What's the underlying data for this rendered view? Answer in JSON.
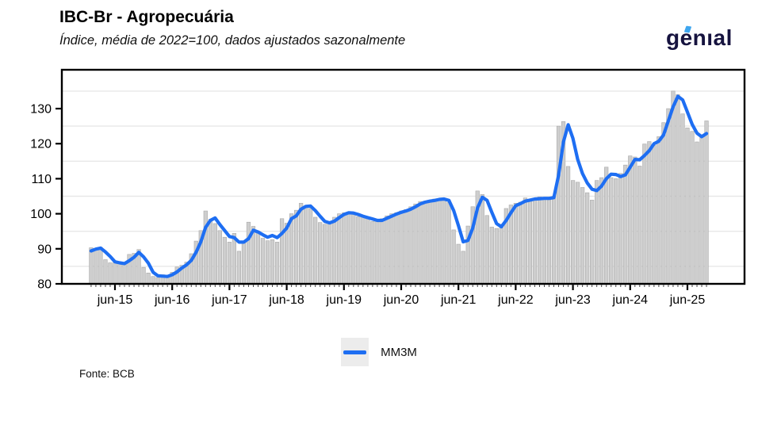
{
  "header": {
    "title": "IBC-Br - Agropecuária",
    "subtitle": "Índice, média de 2022=100, dados ajustados sazonalmente",
    "logo_text": "genıal"
  },
  "legend": {
    "label": "MM3M"
  },
  "footer": {
    "source": "Fonte: BCB"
  },
  "colors": {
    "line": "#1e6ef2",
    "bar_fill": "#cecece",
    "bar_stroke": "#a9a9a9",
    "grid": "#e8e8e8",
    "axis": "#000000",
    "legend_key_bg": "#ececec",
    "logo_navy": "#16133f",
    "logo_accent": "#3ea6ef"
  },
  "chart_data": {
    "type": "bar",
    "title": "IBC-Br - Agropecuária",
    "subtitle": "Índice, média de 2022=100, dados ajustados sazonalmente",
    "frequency": "monthly",
    "start_month": "jan-2015",
    "end_month": "out-2025",
    "x_tick_labels": [
      "jun-15",
      "jun-16",
      "jun-17",
      "jun-18",
      "jun-19",
      "jun-20",
      "jun-21",
      "jun-22",
      "jun-23",
      "jun-24",
      "jun-25"
    ],
    "y_ticks": [
      80,
      90,
      100,
      110,
      120,
      130
    ],
    "ylim": [
      79,
      141
    ],
    "grid_values": [
      85,
      95,
      105,
      115,
      125,
      135
    ],
    "legend_position": "bottom-center",
    "series": [
      {
        "name": "Índice",
        "type": "bar",
        "values": [
          90.3,
          90.0,
          90.4,
          86.9,
          86.0,
          86.1,
          85.8,
          85.6,
          88.4,
          88.7,
          89.8,
          84.7,
          83.1,
          82.1,
          81.8,
          82.6,
          82.0,
          83.3,
          84.8,
          85.3,
          86.2,
          88.6,
          92.2,
          95.2,
          100.8,
          98.4,
          97.2,
          95.2,
          93.3,
          91.9,
          94.4,
          89.3,
          91.9,
          97.6,
          96.4,
          94.7,
          93.0,
          92.3,
          92.6,
          91.9,
          98.6,
          97.3,
          100.0,
          101.0,
          103.0,
          102.2,
          101.5,
          99.0,
          97.5,
          97.0,
          97.8,
          99.0,
          100.0,
          100.3,
          100.5,
          99.8,
          99.2,
          99.0,
          98.6,
          97.8,
          98.0,
          98.6,
          99.4,
          100.0,
          100.3,
          100.8,
          101.2,
          102.0,
          102.8,
          103.5,
          103.6,
          103.7,
          104.2,
          104.3,
          104.0,
          103.2,
          95.4,
          91.3,
          89.3,
          96.5,
          102.0,
          106.5,
          105.5,
          99.5,
          96.2,
          95.8,
          97.0,
          101.5,
          102.5,
          103.0,
          103.3,
          104.5,
          103.8,
          104.2,
          104.8,
          104.3,
          104.0,
          105.0,
          125.0,
          126.3,
          113.5,
          109.5,
          109.0,
          107.5,
          106.0,
          103.9,
          109.5,
          110.3,
          113.3,
          110.3,
          110.0,
          111.5,
          113.9,
          116.5,
          116.2,
          113.6,
          119.9,
          120.6,
          119.5,
          122.0,
          126.0,
          130.0,
          135.0,
          134.0,
          128.5,
          124.5,
          123.5,
          120.5,
          122.0,
          126.5
        ]
      },
      {
        "name": "MM3M",
        "type": "line",
        "values": [
          89.4,
          89.9,
          90.2,
          89.1,
          87.8,
          86.3,
          86.0,
          85.8,
          86.6,
          87.6,
          89.0,
          87.7,
          85.9,
          83.3,
          82.3,
          82.2,
          82.1,
          82.6,
          83.4,
          84.5,
          85.4,
          86.7,
          89.0,
          92.0,
          96.1,
          98.1,
          98.8,
          96.9,
          95.2,
          93.5,
          93.2,
          91.9,
          91.9,
          92.9,
          95.3,
          94.8,
          94.0,
          93.3,
          93.8,
          93.2,
          94.4,
          95.9,
          98.6,
          99.4,
          101.3,
          102.1,
          102.2,
          100.9,
          99.3,
          97.8,
          97.4,
          97.9,
          98.9,
          99.8,
          100.3,
          100.2,
          99.8,
          99.3,
          98.9,
          98.5,
          98.1,
          98.1,
          98.7,
          99.3,
          99.9,
          100.4,
          100.8,
          101.3,
          102.0,
          102.8,
          103.3,
          103.6,
          103.8,
          104.1,
          104.2,
          103.8,
          100.9,
          96.6,
          92.0,
          92.4,
          95.9,
          101.7,
          104.7,
          103.8,
          100.4,
          97.2,
          96.3,
          98.1,
          100.3,
          102.3,
          102.9,
          103.6,
          103.9,
          104.2,
          104.3,
          104.4,
          104.4,
          104.6,
          111.0,
          120.5,
          125.4,
          121.5,
          115.5,
          111.5,
          108.8,
          107.0,
          106.6,
          107.9,
          110.0,
          111.3,
          111.2,
          110.6,
          111.1,
          113.3,
          115.5,
          115.4,
          116.6,
          118.0,
          120.0,
          120.7,
          122.5,
          126.5,
          130.5,
          133.5,
          132.5,
          129.0,
          125.5,
          123.0,
          122.0,
          122.9
        ]
      }
    ]
  }
}
